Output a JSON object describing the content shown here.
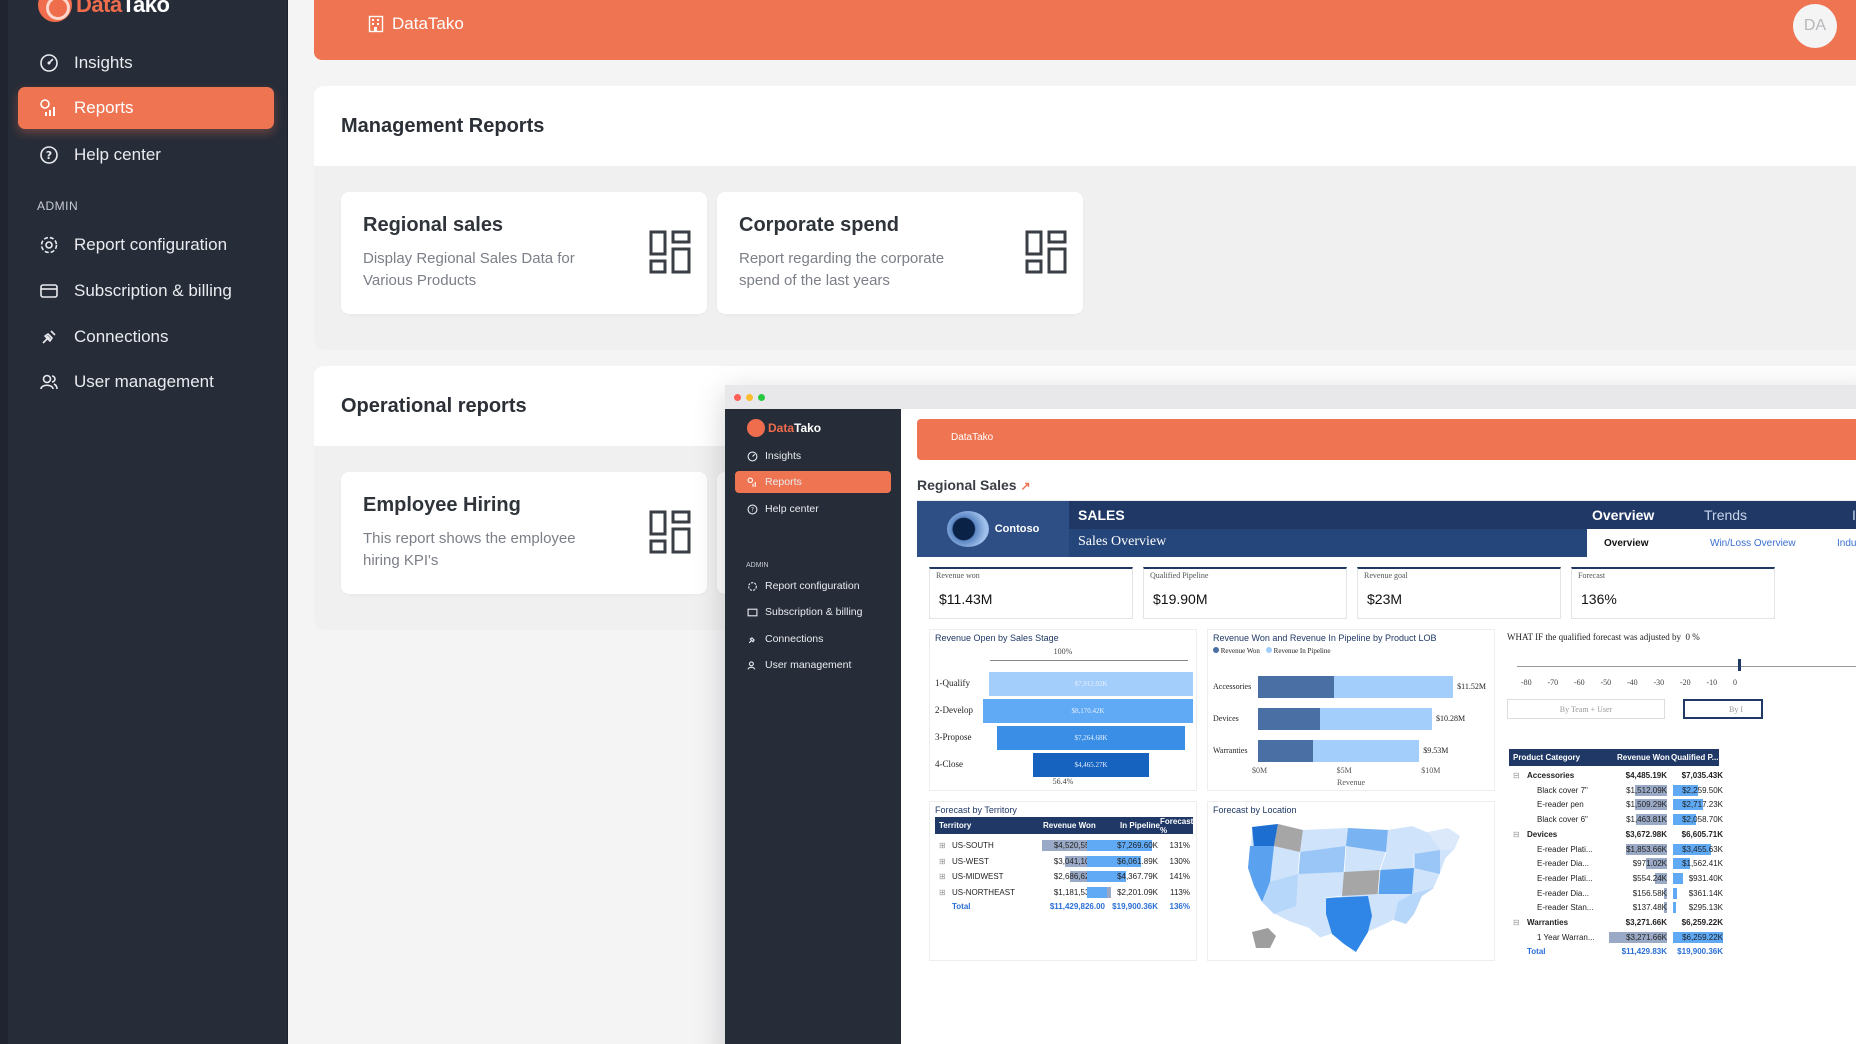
{
  "brand": {
    "name_part1": "Data",
    "name_part2": "Tako",
    "accent": "#ef7452",
    "dark": "#262c38"
  },
  "sidebar": {
    "items": [
      {
        "label": "Insights",
        "icon": "gauge-icon"
      },
      {
        "label": "Reports",
        "icon": "chart-icon",
        "active": true
      },
      {
        "label": "Help center",
        "icon": "help-icon"
      }
    ],
    "admin_label": "ADMIN",
    "admin_items": [
      {
        "label": "Report configuration",
        "icon": "gear-icon"
      },
      {
        "label": "Subscription & billing",
        "icon": "card-icon"
      },
      {
        "label": "Connections",
        "icon": "plug-icon"
      },
      {
        "label": "User management",
        "icon": "users-icon"
      }
    ]
  },
  "topbar": {
    "org": "DataTako",
    "avatar": "DA"
  },
  "management": {
    "title": "Management Reports",
    "cards": [
      {
        "title": "Regional sales",
        "desc": "Display Regional Sales Data for Various Products"
      },
      {
        "title": "Corporate spend",
        "desc": "Report regarding the corporate spend of the last years"
      }
    ]
  },
  "operational": {
    "title": "Operational reports",
    "cards": [
      {
        "title": "Employee Hiring",
        "desc": "This report shows the employee hiring KPI's"
      }
    ]
  },
  "preview": {
    "org": "DataTako",
    "report_title": "Regional Sales",
    "nav": [
      "Insights",
      "Reports",
      "Help center"
    ],
    "admin_label": "ADMIN",
    "admin_nav": [
      "Report configuration",
      "Subscription & billing",
      "Connections",
      "User management"
    ],
    "pbi": {
      "company": "Contoso",
      "header": "SALES",
      "subheader": "Sales Overview",
      "tabs": [
        "Overview",
        "Trends",
        "I"
      ],
      "subtabs": [
        "Overview",
        "Win/Loss Overview",
        "Indu"
      ],
      "kpis": [
        {
          "label": "Revenue won",
          "value": "$11.43M"
        },
        {
          "label": "Qualified Pipeline",
          "value": "$19.90M"
        },
        {
          "label": "Revenue goal",
          "value": "$23M"
        },
        {
          "label": "Forecast",
          "value": "136%"
        }
      ],
      "funnel": {
        "title": "Revenue Open by Sales Stage",
        "top_label": "100%",
        "bottom_label": "56.4%",
        "stages": [
          {
            "name": "1-Qualify",
            "value": "$7,912.02K",
            "pct": 1.0,
            "color": "#a3cdfb"
          },
          {
            "name": "2-Develop",
            "value": "$8,170.42K",
            "pct": 1.03,
            "color": "#5fa9f5"
          },
          {
            "name": "3-Propose",
            "value": "$7,264.68K",
            "pct": 0.92,
            "color": "#3a8ee6"
          },
          {
            "name": "4-Close",
            "value": "$4,465.27K",
            "pct": 0.564,
            "color": "#1562bf"
          }
        ]
      },
      "lob": {
        "title": "Revenue Won and Revenue In Pipeline by Product LOB",
        "legend": [
          "Revenue Won",
          "Revenue In Pipeline"
        ],
        "xlabel": "Revenue",
        "ticks": [
          "$0M",
          "$5M",
          "$10M"
        ],
        "rows": [
          {
            "name": "Accessories",
            "won": 4.49,
            "pipe": 7.04,
            "label": "$11.52M"
          },
          {
            "name": "Devices",
            "won": 3.67,
            "pipe": 6.61,
            "label": "$10.28M"
          },
          {
            "name": "Warranties",
            "won": 3.27,
            "pipe": 6.26,
            "label": "$9.53M"
          }
        ]
      },
      "whatif": {
        "title": "WHAT IF the qualified forecast was adjusted by",
        "value": "0 %",
        "ticks": [
          "-80",
          "-70",
          "-60",
          "-50",
          "-40",
          "-30",
          "-20",
          "-10",
          "0"
        ],
        "buttons": [
          "By Team + User",
          "By I"
        ]
      },
      "territory": {
        "title": "Forecast by Territory",
        "headers": [
          "Territory",
          "Revenue Won",
          "In Pipeline",
          "Forecast %"
        ],
        "rows": [
          {
            "name": "US-SOUTH",
            "won": "$4,520,554.00",
            "pipe": "$7,269.60K",
            "pct": "131%",
            "wf": 0.98,
            "pf": 0.95
          },
          {
            "name": "US-WEST",
            "won": "$3,041,107.00",
            "pipe": "$6,061.89K",
            "pct": "130%",
            "wf": 0.66,
            "pf": 0.8
          },
          {
            "name": "US-MIDWEST",
            "won": "$2,686,629.00",
            "pipe": "$4,367.79K",
            "pct": "141%",
            "wf": 0.58,
            "pf": 0.57
          },
          {
            "name": "US-NORTHEAST",
            "won": "$1,181,536.00",
            "pipe": "$2,201.09K",
            "pct": "113%",
            "wf": 0.26,
            "pf": 0.29
          }
        ],
        "total": {
          "name": "Total",
          "won": "$11,429,826.00",
          "pipe": "$19,900.36K",
          "pct": "136%"
        }
      },
      "location": {
        "title": "Forecast by Location"
      },
      "product": {
        "headers": [
          "Product Category",
          "Revenue Won",
          "Qualified P..."
        ],
        "rows": [
          {
            "name": "Accessories",
            "won": "$4,485.19K",
            "pipe": "$7,035.43K",
            "bold": true
          },
          {
            "name": "Black cover 7\"",
            "won": "$1,512.09K",
            "pipe": "$2,259.50K",
            "wf": 0.55,
            "pf": 0.5
          },
          {
            "name": "E-reader pen",
            "won": "$1,509.29K",
            "pipe": "$2,717.23K",
            "wf": 0.55,
            "pf": 0.6
          },
          {
            "name": "Black cover 6\"",
            "won": "$1,463.81K",
            "pipe": "$2,058.70K",
            "wf": 0.53,
            "pf": 0.45
          },
          {
            "name": "Devices",
            "won": "$3,672.98K",
            "pipe": "$6,605.71K",
            "bold": true
          },
          {
            "name": "E-reader Plati...",
            "won": "$1,853.66K",
            "pipe": "$3,455.63K",
            "wf": 0.7,
            "pf": 0.75
          },
          {
            "name": "E-reader Dia...",
            "won": "$971.02K",
            "pipe": "$1,562.41K",
            "wf": 0.36,
            "pf": 0.34
          },
          {
            "name": "E-reader Plati...",
            "won": "$554.24K",
            "pipe": "$931.40K",
            "wf": 0.2,
            "pf": 0.2
          },
          {
            "name": "E-reader Dia...",
            "won": "$156.58K",
            "pipe": "$361.14K",
            "wf": 0.06,
            "pf": 0.08
          },
          {
            "name": "E-reader Stan...",
            "won": "$137.48K",
            "pipe": "$295.13K",
            "wf": 0.05,
            "pf": 0.06
          },
          {
            "name": "Warranties",
            "won": "$3,271.66K",
            "pipe": "$6,259.22K",
            "bold": true
          },
          {
            "name": "1 Year Warran...",
            "won": "$3,271.66K",
            "pipe": "$6,259.22K",
            "wf": 1.0,
            "pf": 1.0
          },
          {
            "name": "Total",
            "won": "$11,429.83K",
            "pipe": "$19,900.36K",
            "total": true
          }
        ]
      }
    }
  }
}
